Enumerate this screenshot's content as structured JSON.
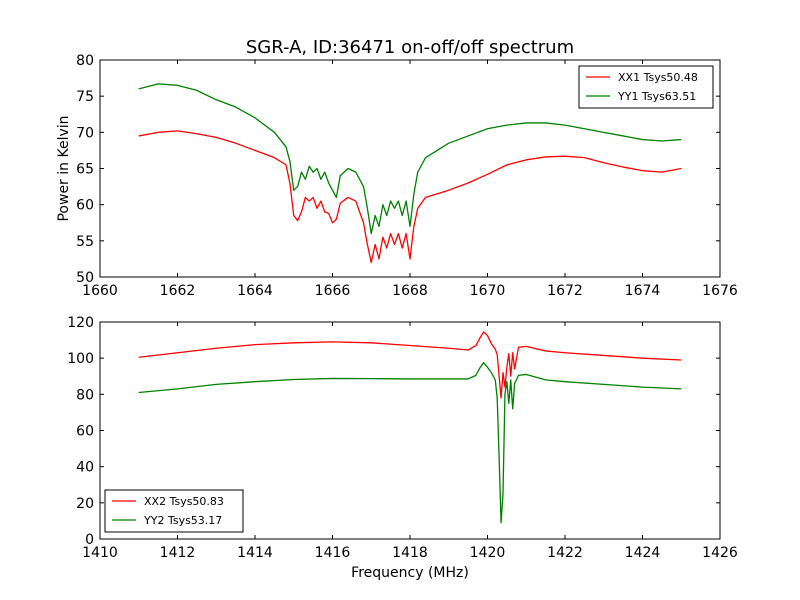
{
  "title": "SGR-A, ID:36471 on-off/off spectrum",
  "chart_data": [
    {
      "type": "line",
      "ylabel": "Power in Kelvin",
      "xlabel": "",
      "xlim": [
        1660,
        1676
      ],
      "ylim": [
        50,
        80
      ],
      "xticks": [
        1660,
        1662,
        1664,
        1666,
        1668,
        1670,
        1672,
        1674,
        1676
      ],
      "yticks": [
        50,
        55,
        60,
        65,
        70,
        75,
        80
      ],
      "grid": false,
      "legend_position": "top-right",
      "series": [
        {
          "name": "XX1 Tsys50.48",
          "color": "#ff0000",
          "x": [
            1661.0,
            1661.5,
            1662.0,
            1662.5,
            1663.0,
            1663.5,
            1664.0,
            1664.5,
            1664.8,
            1664.9,
            1665.0,
            1665.1,
            1665.2,
            1665.3,
            1665.4,
            1665.5,
            1665.6,
            1665.7,
            1665.8,
            1665.9,
            1666.0,
            1666.1,
            1666.2,
            1666.4,
            1666.6,
            1666.8,
            1666.9,
            1667.0,
            1667.1,
            1667.2,
            1667.3,
            1667.4,
            1667.5,
            1667.6,
            1667.7,
            1667.8,
            1667.9,
            1668.0,
            1668.1,
            1668.2,
            1668.4,
            1668.7,
            1669.0,
            1669.5,
            1670.0,
            1670.5,
            1671.0,
            1671.5,
            1672.0,
            1672.5,
            1673.0,
            1673.5,
            1674.0,
            1674.5,
            1675.0
          ],
          "y": [
            69.5,
            70.0,
            70.2,
            69.8,
            69.3,
            68.5,
            67.5,
            66.5,
            65.5,
            63.0,
            58.5,
            57.8,
            59.0,
            61.0,
            60.5,
            61.0,
            59.5,
            60.5,
            59.0,
            58.8,
            57.5,
            58.0,
            60.2,
            61.0,
            60.5,
            57.5,
            54.5,
            52.0,
            54.5,
            52.5,
            55.5,
            54.0,
            56.0,
            54.5,
            56.0,
            54.0,
            56.0,
            52.5,
            57.0,
            59.5,
            61.0,
            61.5,
            62.0,
            63.0,
            64.2,
            65.5,
            66.2,
            66.6,
            66.7,
            66.5,
            65.8,
            65.2,
            64.7,
            64.5,
            65.0
          ]
        },
        {
          "name": "YY1 Tsys63.51",
          "color": "#008000",
          "x": [
            1661.0,
            1661.5,
            1662.0,
            1662.5,
            1663.0,
            1663.5,
            1664.0,
            1664.5,
            1664.8,
            1664.9,
            1665.0,
            1665.1,
            1665.2,
            1665.3,
            1665.4,
            1665.5,
            1665.6,
            1665.7,
            1665.8,
            1665.9,
            1666.0,
            1666.1,
            1666.2,
            1666.4,
            1666.6,
            1666.8,
            1666.9,
            1667.0,
            1667.1,
            1667.2,
            1667.3,
            1667.4,
            1667.5,
            1667.6,
            1667.7,
            1667.8,
            1667.9,
            1668.0,
            1668.1,
            1668.2,
            1668.4,
            1668.7,
            1669.0,
            1669.5,
            1670.0,
            1670.5,
            1671.0,
            1671.5,
            1672.0,
            1672.5,
            1673.0,
            1673.5,
            1674.0,
            1674.5,
            1675.0
          ],
          "y": [
            76.0,
            76.7,
            76.5,
            75.8,
            74.5,
            73.5,
            72.0,
            70.0,
            68.0,
            66.0,
            62.0,
            62.5,
            64.5,
            63.5,
            65.3,
            64.5,
            65.0,
            63.5,
            64.5,
            63.0,
            62.0,
            61.0,
            64.0,
            65.0,
            64.5,
            62.5,
            59.5,
            56.0,
            58.5,
            57.0,
            60.0,
            58.5,
            60.5,
            59.5,
            60.5,
            58.5,
            60.5,
            57.0,
            61.5,
            64.5,
            66.5,
            67.5,
            68.5,
            69.5,
            70.5,
            71.0,
            71.3,
            71.3,
            71.0,
            70.5,
            70.0,
            69.5,
            69.0,
            68.8,
            69.0
          ]
        }
      ]
    },
    {
      "type": "line",
      "xlabel": "Frequency (MHz)",
      "ylabel": "",
      "xlim": [
        1410,
        1426
      ],
      "ylim": [
        0,
        120
      ],
      "xticks": [
        1410,
        1412,
        1414,
        1416,
        1418,
        1420,
        1422,
        1424,
        1426
      ],
      "yticks": [
        0,
        20,
        40,
        60,
        80,
        100,
        120
      ],
      "grid": false,
      "legend_position": "bottom-left",
      "series": [
        {
          "name": "XX2 Tsys50.83",
          "color": "#ff0000",
          "x": [
            1411.0,
            1412.0,
            1413.0,
            1414.0,
            1415.0,
            1416.0,
            1417.0,
            1418.0,
            1419.0,
            1419.5,
            1419.7,
            1419.8,
            1419.9,
            1420.0,
            1420.1,
            1420.2,
            1420.25,
            1420.3,
            1420.35,
            1420.4,
            1420.45,
            1420.5,
            1420.55,
            1420.6,
            1420.65,
            1420.7,
            1420.8,
            1421.0,
            1421.5,
            1422.0,
            1423.0,
            1424.0,
            1425.0
          ],
          "y": [
            100.5,
            103.0,
            105.5,
            107.5,
            108.5,
            109.0,
            108.5,
            107.0,
            105.5,
            104.5,
            107.0,
            111.0,
            114.5,
            112.5,
            108.0,
            105.0,
            102.0,
            90.0,
            78.0,
            92.0,
            84.0,
            95.0,
            102.5,
            90.0,
            103.0,
            94.0,
            106.0,
            106.5,
            104.0,
            103.0,
            101.5,
            100.0,
            99.0
          ]
        },
        {
          "name": "YY2 Tsys53.17",
          "color": "#008000",
          "x": [
            1411.0,
            1412.0,
            1413.0,
            1414.0,
            1415.0,
            1416.0,
            1417.0,
            1418.0,
            1419.0,
            1419.5,
            1419.7,
            1419.8,
            1419.9,
            1420.0,
            1420.1,
            1420.2,
            1420.25,
            1420.3,
            1420.35,
            1420.4,
            1420.45,
            1420.5,
            1420.55,
            1420.6,
            1420.65,
            1420.7,
            1420.8,
            1421.0,
            1421.5,
            1422.0,
            1423.0,
            1424.0,
            1425.0
          ],
          "y": [
            81.0,
            83.0,
            85.5,
            87.0,
            88.2,
            88.8,
            88.7,
            88.5,
            88.5,
            88.5,
            90.5,
            94.5,
            97.5,
            95.0,
            92.0,
            88.0,
            78.0,
            45.0,
            9.0,
            25.0,
            80.0,
            87.0,
            75.0,
            88.0,
            72.0,
            86.0,
            90.5,
            91.0,
            88.0,
            87.0,
            85.5,
            84.0,
            83.0
          ]
        }
      ]
    }
  ]
}
